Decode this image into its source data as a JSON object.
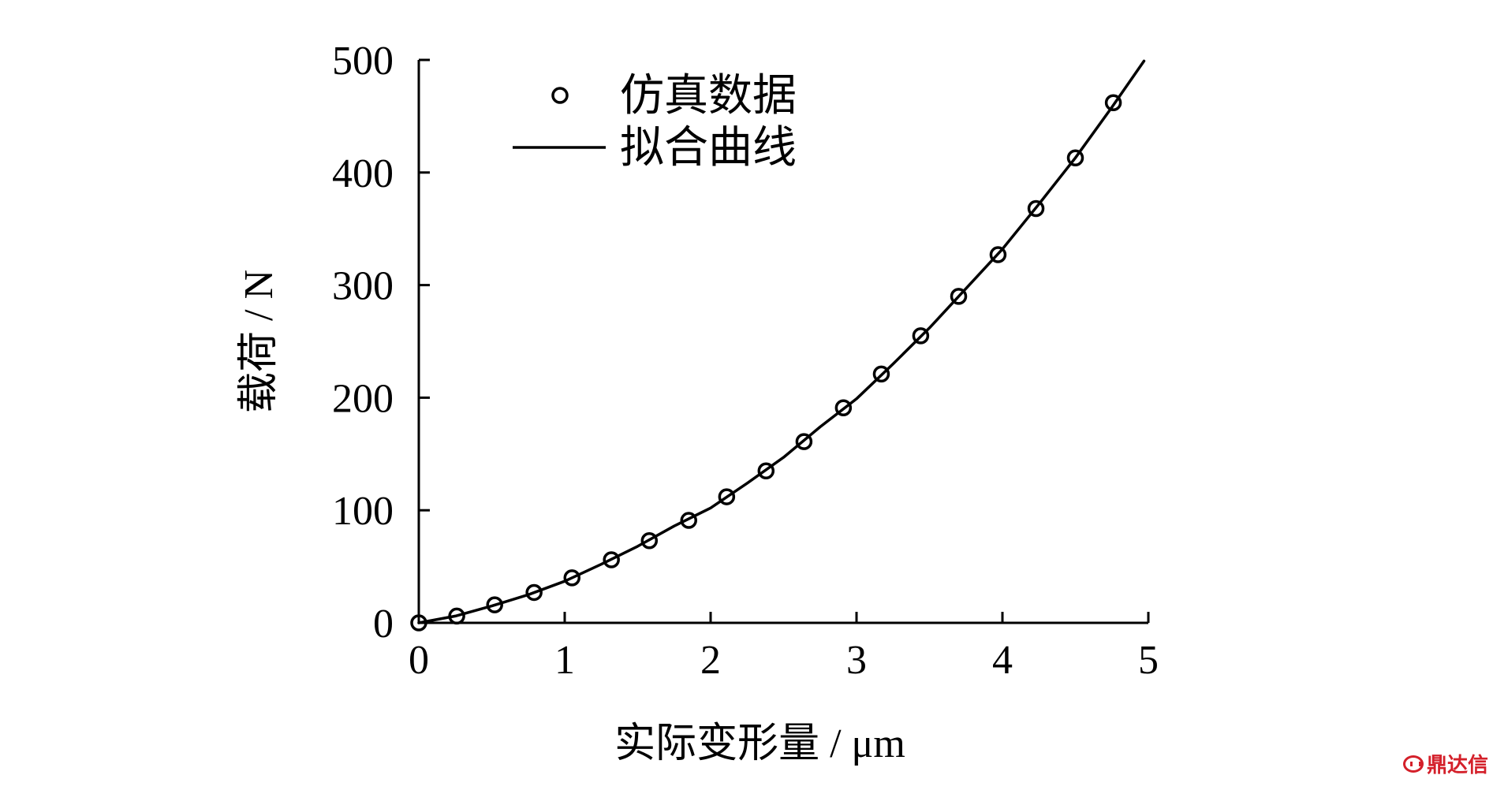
{
  "chart_data": {
    "type": "scatter",
    "xlabel": "实际变形量 / μm",
    "ylabel": "载荷 / N",
    "xlim": [
      0,
      5
    ],
    "ylim": [
      0,
      500
    ],
    "xticks": [
      0,
      1,
      2,
      3,
      4,
      5
    ],
    "yticks": [
      0,
      100,
      200,
      300,
      400,
      500
    ],
    "xtick_labels": [
      "0",
      "1",
      "2",
      "3",
      "4",
      "5"
    ],
    "ytick_labels": [
      "0",
      "100",
      "200",
      "300",
      "400",
      "500"
    ],
    "grid": false,
    "legend_position": "top-left",
    "series": [
      {
        "name": "仿真数据",
        "type": "scatter",
        "marker": "open-circle",
        "x": [
          0,
          0.26,
          0.52,
          0.79,
          1.05,
          1.32,
          1.58,
          1.85,
          2.11,
          2.38,
          2.64,
          2.91,
          3.17,
          3.44,
          3.7,
          3.97,
          4.23,
          4.5,
          4.76
        ],
        "y": [
          0,
          6,
          16,
          27,
          40,
          56,
          73,
          91,
          112,
          135,
          161,
          191,
          221,
          255,
          290,
          327,
          368,
          413,
          462
        ]
      },
      {
        "name": "拟合曲线",
        "type": "line",
        "style": "solid",
        "x": [
          0,
          0.25,
          0.5,
          0.75,
          1.0,
          1.25,
          1.5,
          1.75,
          2.0,
          2.25,
          2.5,
          2.75,
          3.0,
          3.25,
          3.5,
          3.75,
          4.0,
          4.25,
          4.5,
          4.75,
          4.97
        ],
        "y": [
          0,
          6,
          15,
          25,
          37,
          52,
          68,
          86,
          102,
          124,
          147,
          174,
          199,
          230,
          262,
          297,
          332,
          372,
          413,
          458,
          499
        ]
      }
    ]
  },
  "watermark": {
    "text": "鼎达信",
    "color": "#d4202a",
    "icon": "logo-icon"
  }
}
